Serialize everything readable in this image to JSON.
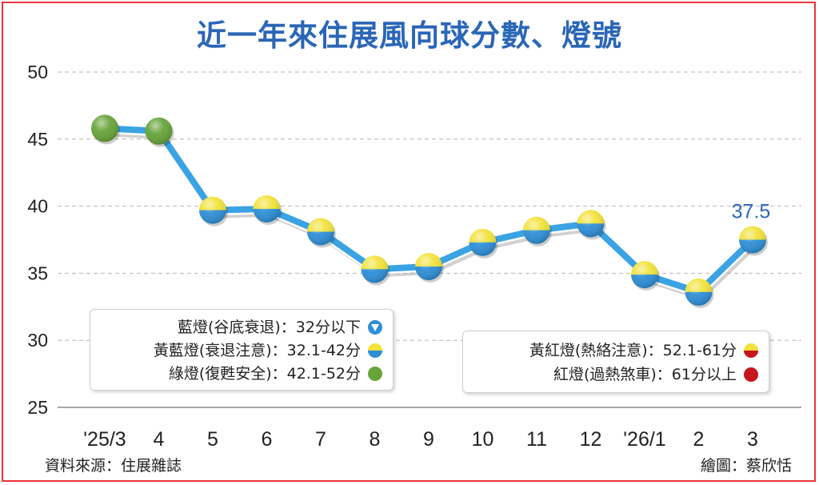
{
  "chart_data": {
    "type": "line",
    "title": "近一年來住展風向球分數、燈號",
    "categories": [
      "'25/3",
      "4",
      "5",
      "6",
      "7",
      "8",
      "9",
      "10",
      "11",
      "12",
      "'26/1",
      "2",
      "3"
    ],
    "series": [
      {
        "values": [
          45.8,
          45.6,
          39.7,
          39.8,
          38.1,
          35.3,
          35.5,
          37.3,
          38.2,
          38.7,
          34.9,
          33.6,
          37.5
        ],
        "lights": [
          "green",
          "green",
          "yellow-blue",
          "yellow-blue",
          "yellow-blue",
          "yellow-blue",
          "yellow-blue",
          "yellow-blue",
          "yellow-blue",
          "yellow-blue",
          "yellow-blue",
          "yellow-blue",
          "yellow-blue"
        ]
      }
    ],
    "y_ticks": [
      "50",
      "45",
      "40",
      "35",
      "30",
      "25"
    ],
    "ylim": [
      25,
      50
    ],
    "grid": true,
    "annotation": {
      "index": 12,
      "text": "37.5"
    },
    "legend": {
      "left": [
        {
          "label": "藍燈(谷底衰退)：32分以下",
          "icon": "blue-triangle-icon"
        },
        {
          "label": "黃藍燈(衰退注意)：32.1-42分",
          "icon": "yellow-blue-icon"
        },
        {
          "label": "綠燈(復甦安全)：42.1-52分",
          "icon": "green-icon"
        }
      ],
      "right": [
        {
          "label": "黃紅燈(熱絡注意)：52.1-61分",
          "icon": "yellow-red-icon"
        },
        {
          "label": "紅燈(過熱煞車)：61分以上",
          "icon": "red-icon"
        }
      ]
    },
    "colors": {
      "line": "#3aa3e3",
      "grid": "#b5b5b5",
      "yellow": "#f2e23a",
      "blue": "#2f8fd6",
      "green": "#67a43a",
      "red": "#c8161d",
      "title": "#2a66b7",
      "annotation": "#2a66b7"
    }
  },
  "source": "資料來源：住展雜誌",
  "credit": "繪圖：蔡欣恬"
}
